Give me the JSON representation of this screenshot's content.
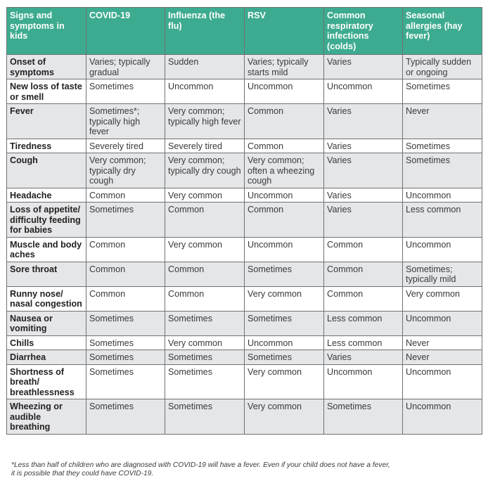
{
  "table": {
    "headers": [
      "Signs and symptoms in kids",
      "COVID-19",
      "Influenza (the flu)",
      "RSV",
      "Common respiratory infections (colds)",
      "Seasonal allergies (hay fever)"
    ],
    "rows": [
      [
        "Onset of symptoms",
        "Varies; typically gradual",
        "Sudden",
        "Varies; typically starts mild",
        "Varies",
        "Typically sudden or ongoing"
      ],
      [
        "New loss of taste or smell",
        "Sometimes",
        "Uncommon",
        "Uncommon",
        "Uncommon",
        "Sometimes"
      ],
      [
        "Fever",
        "Sometimes*; typically high fever",
        "Very common; typically high fever",
        "Common",
        "Varies",
        "Never"
      ],
      [
        "Tiredness",
        "Severely tired",
        "Severely tired",
        "Common",
        "Varies",
        "Sometimes"
      ],
      [
        "Cough",
        "Very common; typically dry cough",
        "Very common; typically dry cough",
        "Very common; often a wheezing cough",
        "Varies",
        "Sometimes"
      ],
      [
        "Headache",
        "Common",
        "Very common",
        "Uncommon",
        "Varies",
        "Uncommon"
      ],
      [
        "Loss of appetite/ difficulty feeding for babies",
        "Sometimes",
        "Common",
        "Common",
        "Varies",
        "Less common"
      ],
      [
        "Muscle and body aches",
        "Common",
        "Very common",
        "Uncommon",
        "Common",
        "Uncommon"
      ],
      [
        "Sore throat",
        "Common",
        "Common",
        "Sometimes",
        "Common",
        "Sometimes; typically mild"
      ],
      [
        "Runny nose/ nasal congestion",
        "Common",
        "Common",
        "Very common",
        "Common",
        "Very common"
      ],
      [
        "Nausea or vomiting",
        "Sometimes",
        "Sometimes",
        "Sometimes",
        "Less common",
        "Uncommon"
      ],
      [
        "Chills",
        "Sometimes",
        "Very common",
        "Uncommon",
        "Less common",
        "Never"
      ],
      [
        "Diarrhea",
        "Sometimes",
        "Sometimes",
        "Sometimes",
        "Varies",
        "Never"
      ],
      [
        "Shortness of breath/ breathlessness",
        "Sometimes",
        "Sometimes",
        "Very common",
        "Uncommon",
        "Uncommon"
      ],
      [
        "Wheezing or audible breathing",
        "Sometimes",
        "Sometimes",
        "Very common",
        "Sometimes",
        "Uncommon"
      ]
    ]
  },
  "footnote": {
    "line1": "*Less than half of children who are diagnosed with COVID-19 will have a fever. Even if your child does not have a fever,",
    "line2": "it is possible that they could have COVID-19."
  },
  "colors": {
    "header_bg": "#3dab8f",
    "header_text": "#ffffff",
    "row_shade": "#e5e6e8",
    "border": "#6f7173"
  }
}
